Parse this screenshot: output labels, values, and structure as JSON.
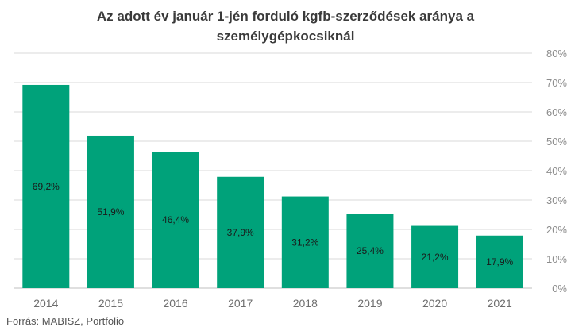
{
  "chart_data": {
    "type": "bar",
    "title": [
      "Az adott év január 1-jén forduló kgfb-szerződések aránya a",
      "személygépkocsiknál"
    ],
    "categories": [
      "2014",
      "2015",
      "2016",
      "2017",
      "2018",
      "2019",
      "2020",
      "2021"
    ],
    "values": [
      69.2,
      51.9,
      46.4,
      37.9,
      31.2,
      25.4,
      21.2,
      17.9
    ],
    "value_labels": [
      "69,2%",
      "51,9%",
      "46,4%",
      "37,9%",
      "31,2%",
      "25,4%",
      "21,2%",
      "17,9%"
    ],
    "yticks": [
      0,
      10,
      20,
      30,
      40,
      50,
      60,
      70,
      80
    ],
    "ytick_labels": [
      "0%",
      "10%",
      "20%",
      "30%",
      "40%",
      "50%",
      "60%",
      "70%",
      "80%"
    ],
    "ylim": [
      0,
      80
    ],
    "grid": true,
    "y_axis_position": "right",
    "bar_color": "#00a27a",
    "grid_color": "#d9d9d9",
    "source": "Forrás: MABISZ, Portfolio"
  }
}
